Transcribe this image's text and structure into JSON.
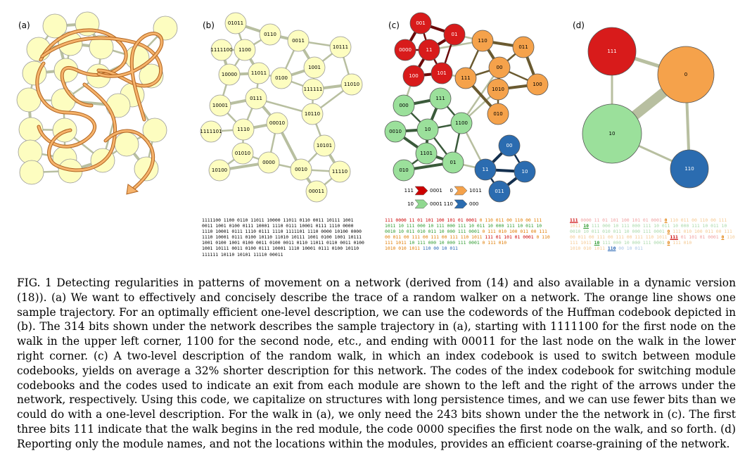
{
  "panels": {
    "a": "(a)",
    "b": "(b)",
    "c": "(c)",
    "d": "(d)"
  },
  "panel_b_nodes": [
    "01011",
    "0110",
    "1111100",
    "1100",
    "0011",
    "10111",
    "10000",
    "11011",
    "0100",
    "1001",
    "111111",
    "11010",
    "10001",
    "0111",
    "10110",
    "1111101",
    "1110",
    "00010",
    "10101",
    "01010",
    "0000",
    "10100",
    "0010",
    "11110",
    "00011"
  ],
  "panel_c_red": [
    "001",
    "01",
    "0000",
    "11",
    "100",
    "101"
  ],
  "panel_c_orange": [
    "110",
    "011",
    "111",
    "00",
    "1010",
    "100",
    "010"
  ],
  "panel_c_green": [
    "000",
    "111",
    "0010",
    "10",
    "1100",
    "1101",
    "01",
    "010"
  ],
  "panel_c_blue": [
    "00",
    "11",
    "10",
    "011"
  ],
  "panel_c_arrows": [
    {
      "left": "111",
      "right": "0001",
      "color": "#cc0000"
    },
    {
      "left": "0",
      "right": "1011",
      "color": "#f5a24b"
    },
    {
      "left": "10",
      "right": "0001",
      "color": "#90d890"
    },
    {
      "left": "110",
      "right": "000",
      "color": "#2b6cb0"
    }
  ],
  "panel_d_nodes": [
    {
      "label": "111",
      "color": "#d81b1b"
    },
    {
      "label": "0",
      "color": "#f5a24b"
    },
    {
      "label": "10",
      "color": "#9be09b"
    },
    {
      "label": "110",
      "color": "#2b6cb0"
    }
  ],
  "bits_b": [
    "1111100 1100 0110 11011 10000 11011 0110 0011 10111 1001",
    "0011 1001 0100 0111 10001 1110 0111 10001 0111 1110 0000",
    "1110 10001 0111 1110 0111 1110 1111101 1110 0000 10100 0000",
    "1110 10001 0111 0100 10110 11010 10111 1001 0100 1001 10111",
    "1001 0100 1001 0100 0011 0100 0011 0110 11011 0110 0011 0100",
    "1001 10111 0011 0100 0111 10001 1110 10001 0111 0100 10110",
    "111111 10110 10101 11110 00011"
  ],
  "bits_c": [
    [
      {
        "t": "111 0000 11 01 101 100 101 01 0001 ",
        "c": "r"
      },
      {
        "t": "0 110 011 00 110 00 111",
        "c": "o"
      }
    ],
    [
      {
        "t": "1011 10 111 000 10 111 000 111 10 011 10 000 111 10 011 10",
        "c": "g"
      }
    ],
    [
      {
        "t": "0010 10 011 010 011 10 000 111 0001 ",
        "c": "g"
      },
      {
        "t": "0 111 010 100 011 00 111",
        "c": "o"
      }
    ],
    [
      {
        "t": "00 011 00 111 00 111 00 111 110 1011 ",
        "c": "o"
      },
      {
        "t": "111 01 101 01 0001 ",
        "c": "r"
      },
      {
        "t": "0 110",
        "c": "o"
      }
    ],
    [
      {
        "t": "111 1011 ",
        "c": "o"
      },
      {
        "t": "10 111 000 10 000 111 0001 ",
        "c": "g"
      },
      {
        "t": "0 111 010",
        "c": "o"
      }
    ],
    [
      {
        "t": "1010 010 1011 ",
        "c": "o"
      },
      {
        "t": "110 00 10 011",
        "c": "bl"
      }
    ]
  ],
  "bits_d": [
    [
      {
        "t": "111",
        "c": "r",
        "u": true
      },
      {
        "t": " 0000 11 01 101 100 101 01 0001 ",
        "c": "fr"
      },
      {
        "t": "0",
        "c": "o",
        "u": true
      },
      {
        "t": " 110 011 00 110 00 111",
        "c": "fo"
      }
    ],
    [
      {
        "t": "1011 ",
        "c": "fo"
      },
      {
        "t": "10",
        "c": "g",
        "u": true
      },
      {
        "t": " 111 000 10 111 000 111 10 011 10 000 111 10 011 10",
        "c": "fg"
      }
    ],
    [
      {
        "t": "0010 10 011 010 011 10 000 111 0001 ",
        "c": "fg"
      },
      {
        "t": "0",
        "c": "o",
        "u": true
      },
      {
        "t": " 111 010 100 011 00 111",
        "c": "fo"
      }
    ],
    [
      {
        "t": "00 011 00 111 00 111 00 111 110 1011 ",
        "c": "fo"
      },
      {
        "t": "111",
        "c": "r",
        "u": true
      },
      {
        "t": " 01 101 01 0001 ",
        "c": "fr"
      },
      {
        "t": "0",
        "c": "o",
        "u": true
      },
      {
        "t": " 110",
        "c": "fo"
      }
    ],
    [
      {
        "t": "111 1011 ",
        "c": "fo"
      },
      {
        "t": "10",
        "c": "g",
        "u": true
      },
      {
        "t": " 111 000 10 000 111 0001 ",
        "c": "fg"
      },
      {
        "t": "0",
        "c": "o",
        "u": true
      },
      {
        "t": " 111 010",
        "c": "fo"
      }
    ],
    [
      {
        "t": "1010 010 1011 ",
        "c": "fo"
      },
      {
        "t": "110",
        "c": "bl",
        "u": true
      },
      {
        "t": " 00 10 011",
        "c": "fb"
      }
    ]
  ],
  "caption": "FIG. 1  Detecting regularities in patterns of movement on a network (derived from (14) and also available in a dynamic version (18)). (a) We want to effectively and concisely describe the trace of a random walker on a network. The orange line shows one sample trajectory. For an optimally efficient one-level description, we can use the codewords of the Huffman codebook depicted in (b). The 314 bits shown under the network describes the sample trajectory in (a), starting with 1111100 for the first node on the walk in the upper left corner, 1100 for the second node, etc., and ending with 00011 for the last node on the walk in the lower right corner. (c) A two-level description of the random walk, in which an index codebook is used to switch between module codebooks, yields on average a 32% shorter description for this network. The codes of the index codebook for switching module codebooks and the codes used to indicate an exit from each module are shown to the left and the right of the arrows under the network, respectively. Using this code, we capitalize on structures with long persistence times, and we can use fewer bits than we could do with a one-level description. For the walk in (a), we only need the 243 bits shown under the the network in (c). The first three bits 111 indicate that the walk begins in the red module, the code 0000 specifies the first node on the walk, and so forth. (d) Reporting only the module names, and not the locations within the modules, provides an efficient coarse-graining of the network."
}
